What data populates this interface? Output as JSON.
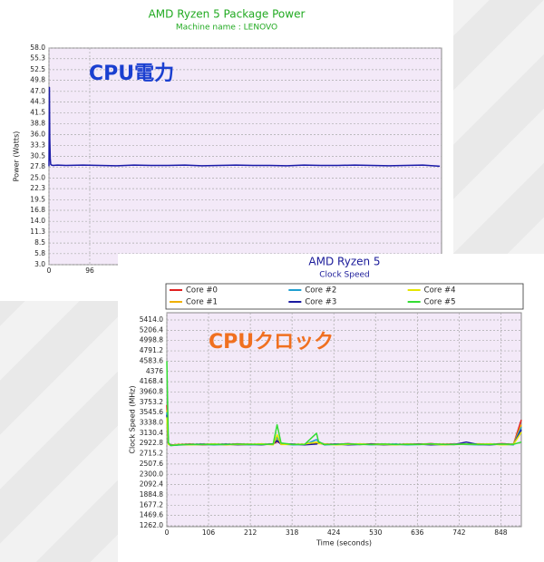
{
  "chart_data": [
    {
      "type": "line",
      "title": "AMD Ryzen 5 Package Power",
      "subtitle": "Machine name : LENOVO",
      "ylabel": "Power (Watts)",
      "annotation": "CPU電力",
      "annotation_color": "#1a3fd0",
      "color": "#1a1aa8",
      "grid": true,
      "x": [
        0,
        1,
        2,
        3,
        4,
        6,
        10,
        20,
        40,
        80,
        120,
        160,
        200,
        240,
        280,
        320,
        360,
        400,
        440,
        480,
        520,
        560,
        600,
        640,
        680,
        720,
        760,
        800,
        840,
        880,
        920
      ],
      "values": [
        28.0,
        48.0,
        35.0,
        30.0,
        28.5,
        28.3,
        28.2,
        28.3,
        28.2,
        28.3,
        28.2,
        28.1,
        28.3,
        28.2,
        28.2,
        28.3,
        28.1,
        28.2,
        28.3,
        28.2,
        28.2,
        28.1,
        28.3,
        28.2,
        28.2,
        28.3,
        28.2,
        28.1,
        28.2,
        28.3,
        28.0
      ],
      "xlim": [
        0,
        924
      ],
      "xticks": [
        0,
        96
      ],
      "ylim": [
        3,
        58
      ],
      "yticks": [
        {
          "value": 3,
          "label": "3.0"
        },
        5.8,
        8.5,
        11.3,
        {
          "value": 14,
          "label": "14.0"
        },
        16.8,
        19.5,
        22.3,
        {
          "value": 25,
          "label": "25.0"
        },
        27.8,
        30.5,
        33.3,
        {
          "value": 36,
          "label": "36.0"
        },
        38.8,
        41.5,
        44.3,
        {
          "value": 47,
          "label": "47.0"
        },
        49.8,
        52.5,
        55.3,
        {
          "value": 58,
          "label": "58.0"
        }
      ]
    },
    {
      "type": "line",
      "title": "AMD Ryzen 5",
      "subtitle": "Clock Speed",
      "xlabel": "Time (seconds)",
      "ylabel": "Clock Speed (MHz)",
      "annotation": "CPUクロック",
      "annotation_color": "#f07020",
      "grid": true,
      "x": [
        0,
        4,
        10,
        30,
        60,
        90,
        120,
        150,
        180,
        210,
        240,
        270,
        280,
        290,
        320,
        350,
        380,
        385,
        400,
        430,
        460,
        490,
        520,
        550,
        580,
        610,
        640,
        670,
        700,
        730,
        760,
        790,
        820,
        850,
        880,
        900
      ],
      "series": [
        {
          "name": "Core #0",
          "color": "#e02020",
          "values": [
            3700,
            2930,
            2890,
            2900,
            2910,
            2895,
            2905,
            2900,
            2915,
            2900,
            2905,
            2910,
            2960,
            2920,
            2905,
            2900,
            2930,
            2950,
            2910,
            2905,
            2920,
            2900,
            2915,
            2905,
            2900,
            2910,
            2905,
            2920,
            2900,
            2915,
            2905,
            2910,
            2900,
            2920,
            2905,
            3400
          ]
        },
        {
          "name": "Core #1",
          "color": "#f0b000",
          "values": [
            3600,
            2920,
            2885,
            2895,
            2905,
            2900,
            2910,
            2895,
            2905,
            2910,
            2900,
            2905,
            3000,
            2915,
            2900,
            2905,
            2920,
            2940,
            2905,
            2900,
            2910,
            2905,
            2900,
            2910,
            2905,
            2900,
            2915,
            2905,
            2910,
            2900,
            2905,
            2915,
            2905,
            2900,
            2910,
            3300
          ]
        },
        {
          "name": "Core #2",
          "color": "#1f9fd0",
          "values": [
            3550,
            2910,
            2880,
            2890,
            2900,
            2905,
            2895,
            2905,
            2900,
            2895,
            2910,
            2900,
            3050,
            2910,
            2895,
            2900,
            3000,
            2960,
            2895,
            2905,
            2900,
            2910,
            2895,
            2900,
            2910,
            2895,
            2900,
            2905,
            2895,
            2910,
            2900,
            2895,
            2910,
            2905,
            2895,
            3250
          ]
        },
        {
          "name": "Core #3",
          "color": "#1a1aa0",
          "values": [
            3500,
            2915,
            2890,
            2895,
            2900,
            2910,
            2900,
            2910,
            2895,
            2905,
            2895,
            2915,
            2980,
            2905,
            2910,
            2895,
            2910,
            2930,
            2900,
            2910,
            2895,
            2900,
            2910,
            2895,
            2900,
            2905,
            2910,
            2895,
            2905,
            2900,
            2950,
            2900,
            2895,
            2910,
            2900,
            3200
          ]
        },
        {
          "name": "Core #4",
          "color": "#e6e600",
          "values": [
            3450,
            2905,
            2885,
            2900,
            2895,
            2905,
            2910,
            2900,
            2905,
            2900,
            2915,
            2895,
            3100,
            2900,
            2905,
            2910,
            2950,
            2920,
            2910,
            2895,
            2905,
            2915,
            2900,
            2905,
            2895,
            2910,
            2900,
            2910,
            2895,
            2905,
            2910,
            2900,
            2915,
            2895,
            2905,
            3150
          ]
        },
        {
          "name": "Core #5",
          "color": "#33dd33",
          "values": [
            4583,
            2940,
            2880,
            2895,
            2905,
            2900,
            2905,
            2900,
            2910,
            2905,
            2900,
            2910,
            3300,
            2930,
            2900,
            2905,
            3130,
            2960,
            2900,
            2905,
            2915,
            2900,
            2905,
            2910,
            2900,
            2905,
            2900,
            2915,
            2905,
            2900,
            2910,
            2905,
            2900,
            2910,
            2905,
            2950
          ]
        }
      ],
      "xlim": [
        0,
        900
      ],
      "xticks": [
        0,
        106,
        212,
        318,
        424,
        530,
        636,
        742,
        848
      ],
      "ylim": [
        1262,
        5414
      ],
      "yticks": [
        {
          "value": 1262,
          "label": "1262.0"
        },
        1469.6,
        1677.2,
        1884.8,
        2092.4,
        {
          "value": 2300,
          "label": "2300.0"
        },
        2507.6,
        2715.2,
        2922.8,
        3130.4,
        {
          "value": 3338,
          "label": "3338.0"
        },
        3545.6,
        3753.2,
        3960.8,
        4168.4,
        4376,
        4583.6,
        4791.2,
        4998.8,
        5206.4,
        {
          "value": 5414,
          "label": "5414.0"
        }
      ]
    }
  ]
}
